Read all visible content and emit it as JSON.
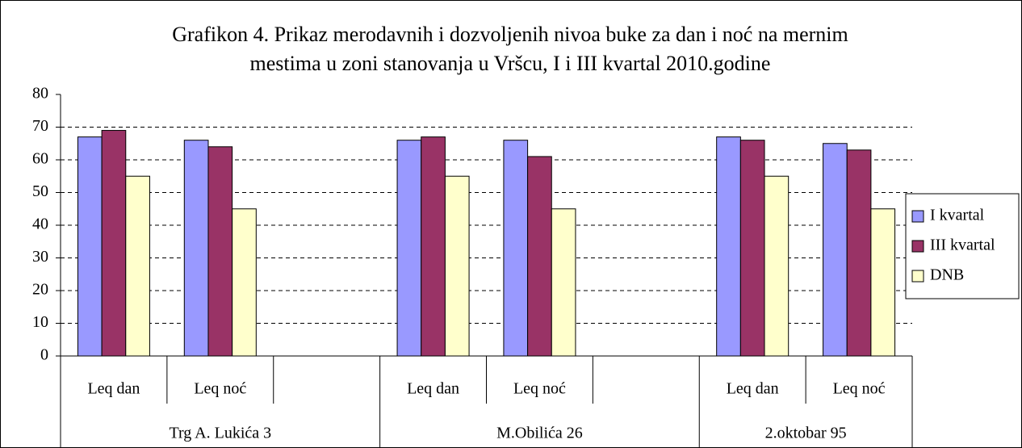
{
  "chart_data": {
    "type": "bar",
    "title": [
      "Grafikon 4. Prikaz merodavnih i dozvoljenih nivoa buke za dan i noć na mernim",
      "mestima u zoni stanovanja u Vršcu,  I i III kvartal 2010.godine"
    ],
    "categories": [
      "Leq dan",
      "Leq noć",
      null,
      "Leq dan",
      "Leq noć",
      null,
      "Leq dan",
      "Leq noć"
    ],
    "groups": [
      "Trg A. Lukića 3",
      "M.Obilića 26",
      "2.oktobar 95"
    ],
    "series": [
      {
        "name": "I kvartal",
        "color": "#9999ff",
        "values": [
          67,
          66,
          null,
          66,
          66,
          null,
          67,
          65
        ]
      },
      {
        "name": "III kvartal",
        "color": "#993366",
        "values": [
          69,
          64,
          null,
          67,
          61,
          null,
          66,
          63
        ]
      },
      {
        "name": "DNB",
        "color": "#ffffcc",
        "values": [
          55,
          45,
          null,
          55,
          45,
          null,
          55,
          45
        ]
      }
    ],
    "ylim": [
      0,
      80
    ],
    "yticks": [
      0,
      10,
      20,
      30,
      40,
      50,
      60,
      70,
      80
    ],
    "grid": true,
    "legend": "right"
  }
}
